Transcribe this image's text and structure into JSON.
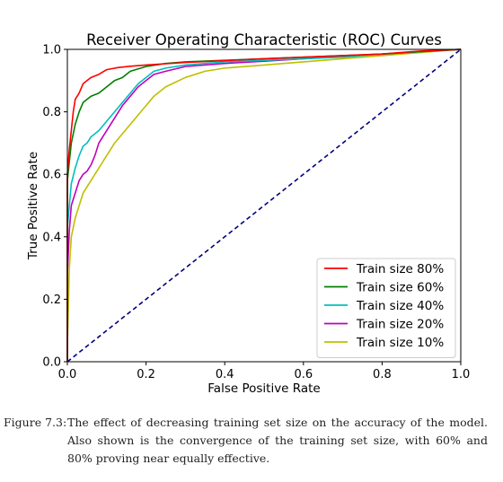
{
  "chart_data": {
    "type": "line",
    "title": "Receiver Operating Characteristic (ROC) Curves",
    "xlabel": "False Positive Rate",
    "ylabel": "True Positive Rate",
    "xlim": [
      0.0,
      1.0
    ],
    "ylim": [
      0.0,
      1.0
    ],
    "xticks": [
      "0.0",
      "0.2",
      "0.4",
      "0.6",
      "0.8",
      "1.0"
    ],
    "yticks": [
      "0.0",
      "0.2",
      "0.4",
      "0.6",
      "0.8",
      "1.0"
    ],
    "grid": false,
    "legend_position": "lower-right",
    "series": [
      {
        "name": "Train size 80%",
        "color": "#ff0000",
        "x": [
          0,
          0,
          0.005,
          0.01,
          0.015,
          0.02,
          0.03,
          0.04,
          0.05,
          0.06,
          0.08,
          0.1,
          0.13,
          0.16,
          0.2,
          0.3,
          0.4,
          0.5,
          0.6,
          0.7,
          0.8,
          0.85,
          0.9,
          1.0
        ],
        "y": [
          0,
          0.6,
          0.68,
          0.74,
          0.8,
          0.84,
          0.86,
          0.89,
          0.9,
          0.91,
          0.92,
          0.935,
          0.942,
          0.946,
          0.95,
          0.958,
          0.964,
          0.97,
          0.975,
          0.98,
          0.985,
          0.99,
          0.995,
          1.0
        ]
      },
      {
        "name": "Train size 60%",
        "color": "#008000",
        "x": [
          0,
          0,
          0.005,
          0.01,
          0.02,
          0.03,
          0.04,
          0.06,
          0.08,
          0.1,
          0.12,
          0.14,
          0.16,
          0.2,
          0.25,
          0.3,
          0.4,
          0.5,
          0.6,
          0.7,
          0.8,
          0.9,
          1.0
        ],
        "y": [
          0,
          0.58,
          0.64,
          0.7,
          0.76,
          0.8,
          0.83,
          0.85,
          0.86,
          0.88,
          0.9,
          0.91,
          0.93,
          0.945,
          0.955,
          0.96,
          0.965,
          0.97,
          0.975,
          0.98,
          0.985,
          0.993,
          1.0
        ]
      },
      {
        "name": "Train size 40%",
        "color": "#00bfbf",
        "x": [
          0,
          0,
          0.005,
          0.01,
          0.02,
          0.03,
          0.04,
          0.05,
          0.06,
          0.08,
          0.1,
          0.12,
          0.14,
          0.16,
          0.18,
          0.2,
          0.22,
          0.25,
          0.3,
          0.4,
          0.5,
          0.6,
          0.7,
          0.8,
          0.9,
          1.0
        ],
        "y": [
          0,
          0.43,
          0.5,
          0.57,
          0.62,
          0.66,
          0.69,
          0.7,
          0.72,
          0.74,
          0.77,
          0.8,
          0.83,
          0.86,
          0.89,
          0.91,
          0.93,
          0.94,
          0.95,
          0.96,
          0.965,
          0.97,
          0.975,
          0.985,
          0.993,
          1.0
        ]
      },
      {
        "name": "Train size 20%",
        "color": "#bf00bf",
        "x": [
          0,
          0,
          0.005,
          0.01,
          0.02,
          0.03,
          0.04,
          0.05,
          0.06,
          0.07,
          0.08,
          0.1,
          0.12,
          0.14,
          0.16,
          0.18,
          0.2,
          0.22,
          0.25,
          0.3,
          0.4,
          0.5,
          0.6,
          0.7,
          0.8,
          0.9,
          1.0
        ],
        "y": [
          0,
          0.28,
          0.42,
          0.5,
          0.54,
          0.58,
          0.6,
          0.61,
          0.63,
          0.66,
          0.7,
          0.74,
          0.78,
          0.82,
          0.85,
          0.88,
          0.9,
          0.92,
          0.93,
          0.945,
          0.955,
          0.962,
          0.97,
          0.978,
          0.985,
          0.993,
          1.0
        ]
      },
      {
        "name": "Train size 10%",
        "color": "#bfbf00",
        "x": [
          0,
          0,
          0.005,
          0.01,
          0.02,
          0.03,
          0.04,
          0.06,
          0.08,
          0.1,
          0.12,
          0.14,
          0.16,
          0.18,
          0.2,
          0.22,
          0.25,
          0.3,
          0.35,
          0.4,
          0.5,
          0.6,
          0.7,
          0.8,
          0.9,
          1.0
        ],
        "y": [
          0,
          0.05,
          0.3,
          0.4,
          0.46,
          0.5,
          0.54,
          0.58,
          0.62,
          0.66,
          0.7,
          0.73,
          0.76,
          0.79,
          0.82,
          0.85,
          0.88,
          0.91,
          0.93,
          0.94,
          0.95,
          0.96,
          0.97,
          0.98,
          0.99,
          1.0
        ]
      }
    ],
    "reference_line": {
      "color": "#000080",
      "style": "dashed",
      "x": [
        0,
        1
      ],
      "y": [
        0,
        1
      ]
    }
  },
  "caption": {
    "label": "Figure 7.3:",
    "text": "The effect of decreasing training set size on the accuracy of the model. Also shown is the convergence of the training set size, with 60% and 80% proving near equally effective."
  }
}
